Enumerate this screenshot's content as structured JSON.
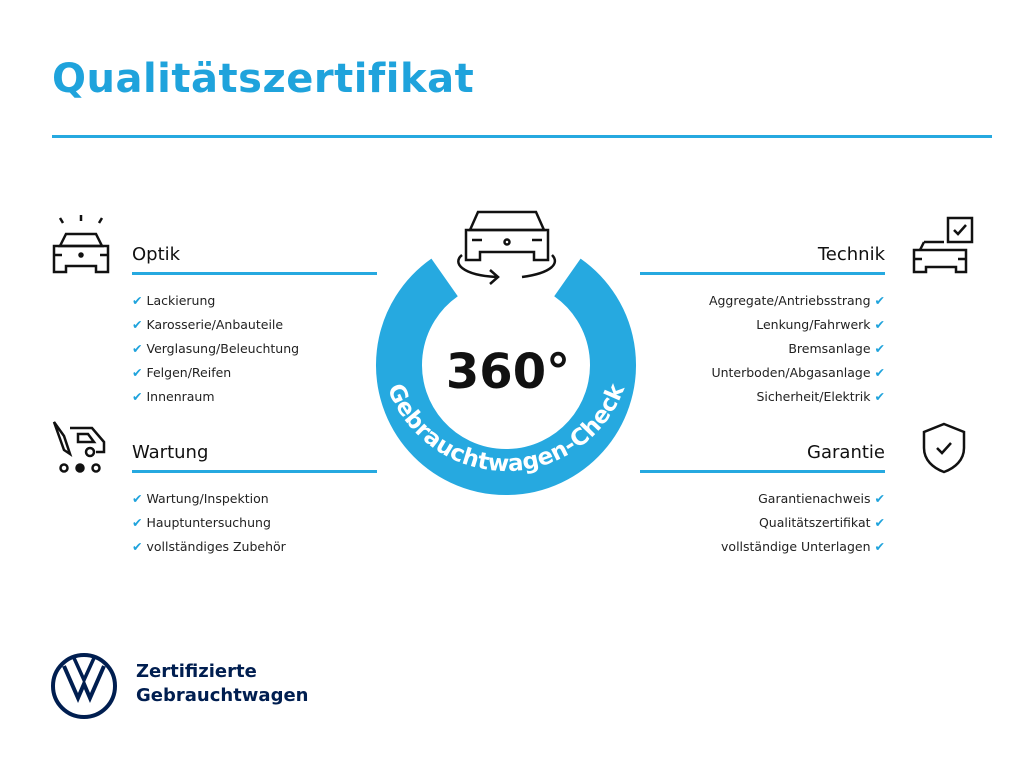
{
  "title": "Qualitätszertifikat",
  "colors": {
    "accent": "#26a9e0",
    "brand": "#001e50"
  },
  "badge": {
    "value": "360°",
    "ring_text": "Gebrauchtwagen-Check",
    "icon": "car-rotate-icon"
  },
  "sections": {
    "optik": {
      "title": "Optik",
      "icon": "car-lights-icon",
      "items": [
        "Lackierung",
        "Karosserie/Anbauteile",
        "Verglasung/Beleuchtung",
        "Felgen/Reifen",
        "Innenraum"
      ]
    },
    "wartung": {
      "title": "Wartung",
      "icon": "service-van-icon",
      "items": [
        "Wartung/Inspektion",
        "Hauptuntersuchung",
        "vollständiges Zubehör"
      ]
    },
    "technik": {
      "title": "Technik",
      "icon": "car-checklist-icon",
      "items": [
        "Aggregate/Antriebsstrang",
        "Lenkung/Fahrwerk",
        "Bremsanlage",
        "Unterboden/Abgasanlage",
        "Sicherheit/Elektrik"
      ]
    },
    "garantie": {
      "title": "Garantie",
      "icon": "shield-check-icon",
      "items": [
        "Garantienachweis",
        "Qualitätszertifikat",
        "vollständige Unterlagen"
      ]
    }
  },
  "check_mark": "✔",
  "footer": {
    "line1": "Zertifizierte",
    "line2": "Gebrauchtwagen",
    "logo": "vw-logo"
  }
}
